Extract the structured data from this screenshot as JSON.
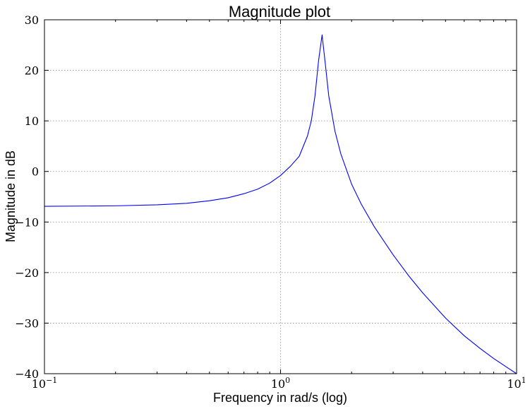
{
  "chart_data": {
    "type": "line",
    "title": "Magnitude plot",
    "xlabel": "Frequency in rad/s (log)",
    "ylabel": "Magnitude in dB",
    "xscale": "log",
    "xlim": [
      0.1,
      10
    ],
    "ylim": [
      -40,
      30
    ],
    "grid": true,
    "x_ticks": [
      {
        "value": 0.1,
        "base": "10",
        "exp": "−1"
      },
      {
        "value": 1,
        "base": "10",
        "exp": "0"
      },
      {
        "value": 10,
        "base": "10",
        "exp": "1"
      }
    ],
    "y_ticks": [
      {
        "value": 30,
        "label": "30"
      },
      {
        "value": 20,
        "label": "20"
      },
      {
        "value": 10,
        "label": "10"
      },
      {
        "value": 0,
        "label": "0"
      },
      {
        "value": -10,
        "label": "−10"
      },
      {
        "value": -20,
        "label": "−20"
      },
      {
        "value": -30,
        "label": "−30"
      },
      {
        "value": -40,
        "label": "−40"
      }
    ],
    "series": [
      {
        "color": "#0000ff",
        "x": [
          0.1,
          0.2,
          0.3,
          0.4,
          0.5,
          0.6,
          0.7,
          0.8,
          0.9,
          1.0,
          1.1,
          1.2,
          1.3,
          1.35,
          1.4,
          1.45,
          1.5,
          1.55,
          1.6,
          1.7,
          1.8,
          2.0,
          2.2,
          2.5,
          3.0,
          3.5,
          4.0,
          5.0,
          6.0,
          7.0,
          8.0,
          9.0,
          10.0
        ],
        "values": [
          -6.9,
          -6.8,
          -6.6,
          -6.3,
          -5.8,
          -5.2,
          -4.4,
          -3.5,
          -2.3,
          -0.8,
          1.0,
          3.0,
          7.0,
          10.0,
          15.0,
          22.0,
          27.0,
          21.0,
          15.0,
          8.0,
          3.5,
          -2.5,
          -6.5,
          -11.0,
          -16.5,
          -20.7,
          -24.0,
          -29.0,
          -32.5,
          -35.0,
          -37.0,
          -38.6,
          -40.0
        ]
      }
    ]
  }
}
